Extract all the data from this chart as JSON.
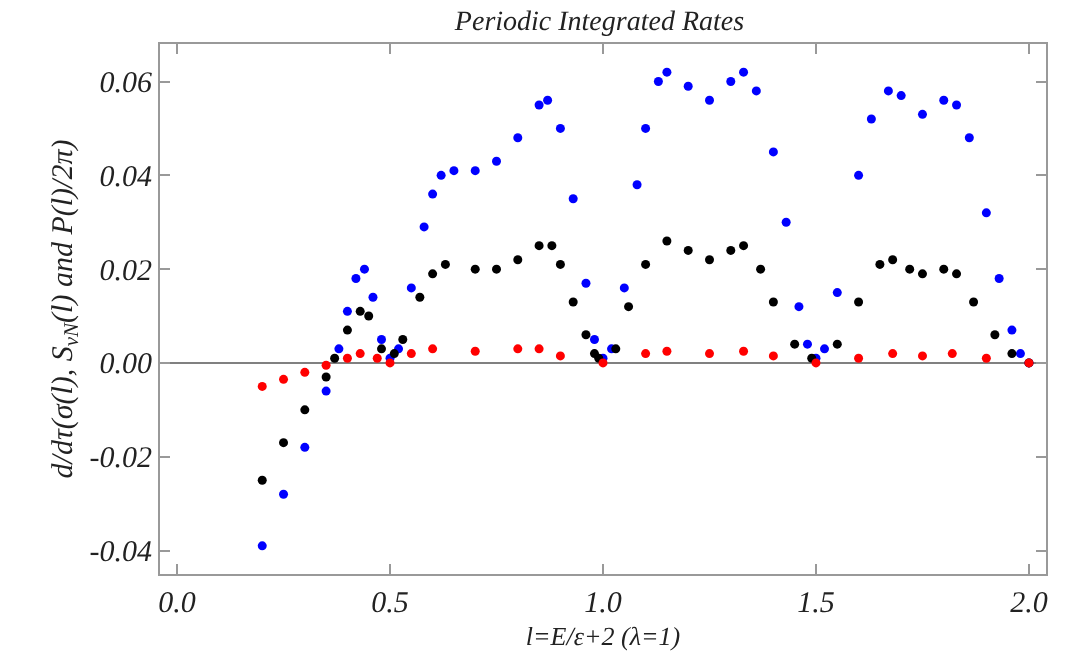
{
  "chart_data": {
    "type": "scatter",
    "title": "Periodic Integrated Rates",
    "xlabel": "l=E/ε+2 (λ=1)",
    "ylabel": "d/dτ(σ(l), S$_{νN}$(l) and P(l)/2π)",
    "xlim": [
      -0.04,
      2.04
    ],
    "ylim": [
      -0.045,
      0.068
    ],
    "xticks": [
      {
        "value": 0,
        "label": "0.0"
      },
      0.5,
      {
        "value": 1,
        "label": "1.0"
      },
      1.5,
      {
        "value": 2,
        "label": "2.0"
      }
    ],
    "yticks": [
      -0.04,
      -0.02,
      {
        "value": 0,
        "label": "0.00"
      },
      0.02,
      0.04,
      0.06
    ],
    "grid": false,
    "legend": false,
    "marker": "circle",
    "ref_lines": [
      {
        "axis": "y",
        "value": 0,
        "color": "#808080"
      }
    ],
    "series": [
      {
        "color": "#0000ff",
        "x": [
          0.2,
          0.25,
          0.3,
          0.35,
          0.38,
          0.4,
          0.42,
          0.44,
          0.46,
          0.48,
          0.5,
          0.52,
          0.55,
          0.58,
          0.6,
          0.62,
          0.65,
          0.7,
          0.75,
          0.8,
          0.85,
          0.87,
          0.9,
          0.93,
          0.96,
          0.98,
          1.0,
          1.02,
          1.05,
          1.08,
          1.1,
          1.13,
          1.15,
          1.2,
          1.25,
          1.3,
          1.33,
          1.36,
          1.4,
          1.43,
          1.46,
          1.48,
          1.5,
          1.52,
          1.55,
          1.6,
          1.63,
          1.67,
          1.7,
          1.75,
          1.8,
          1.83,
          1.86,
          1.9,
          1.93,
          1.96,
          1.98,
          2.0
        ],
        "values": [
          -0.039,
          -0.028,
          -0.018,
          -0.006,
          0.003,
          0.011,
          0.018,
          0.02,
          0.014,
          0.005,
          0.001,
          0.003,
          0.016,
          0.029,
          0.036,
          0.04,
          0.041,
          0.041,
          0.043,
          0.048,
          0.055,
          0.056,
          0.05,
          0.035,
          0.017,
          0.005,
          0.001,
          0.003,
          0.016,
          0.038,
          0.05,
          0.06,
          0.062,
          0.059,
          0.056,
          0.06,
          0.062,
          0.058,
          0.045,
          0.03,
          0.012,
          0.004,
          0.001,
          0.003,
          0.015,
          0.04,
          0.052,
          0.058,
          0.057,
          0.053,
          0.056,
          0.055,
          0.048,
          0.032,
          0.018,
          0.007,
          0.002,
          0.0
        ]
      },
      {
        "color": "#000000",
        "x": [
          0.2,
          0.25,
          0.3,
          0.35,
          0.37,
          0.4,
          0.43,
          0.45,
          0.48,
          0.51,
          0.53,
          0.57,
          0.6,
          0.63,
          0.7,
          0.75,
          0.8,
          0.85,
          0.88,
          0.9,
          0.93,
          0.96,
          0.98,
          0.99,
          1.03,
          1.06,
          1.1,
          1.15,
          1.2,
          1.25,
          1.3,
          1.33,
          1.37,
          1.4,
          1.45,
          1.49,
          1.55,
          1.6,
          1.65,
          1.68,
          1.72,
          1.75,
          1.8,
          1.83,
          1.87,
          1.92,
          1.96,
          2.0
        ],
        "values": [
          -0.025,
          -0.017,
          -0.01,
          -0.003,
          0.001,
          0.007,
          0.011,
          0.01,
          0.003,
          0.002,
          0.005,
          0.014,
          0.019,
          0.021,
          0.02,
          0.02,
          0.022,
          0.025,
          0.025,
          0.021,
          0.013,
          0.006,
          0.002,
          0.001,
          0.003,
          0.012,
          0.021,
          0.026,
          0.024,
          0.022,
          0.024,
          0.025,
          0.02,
          0.013,
          0.004,
          0.001,
          0.004,
          0.013,
          0.021,
          0.022,
          0.02,
          0.019,
          0.02,
          0.019,
          0.013,
          0.006,
          0.002,
          0.0
        ]
      },
      {
        "color": "#ff0000",
        "x": [
          0.2,
          0.25,
          0.3,
          0.35,
          0.4,
          0.43,
          0.47,
          0.5,
          0.55,
          0.6,
          0.7,
          0.8,
          0.85,
          0.9,
          1.0,
          1.1,
          1.15,
          1.25,
          1.33,
          1.4,
          1.5,
          1.6,
          1.68,
          1.75,
          1.82,
          1.9,
          2.0
        ],
        "values": [
          -0.005,
          -0.0035,
          -0.002,
          -0.0005,
          0.001,
          0.002,
          0.001,
          0.0,
          0.002,
          0.003,
          0.0025,
          0.003,
          0.003,
          0.0015,
          0.0,
          0.002,
          0.0025,
          0.002,
          0.0025,
          0.0015,
          0.0,
          0.001,
          0.002,
          0.0015,
          0.002,
          0.001,
          0.0
        ]
      }
    ]
  }
}
